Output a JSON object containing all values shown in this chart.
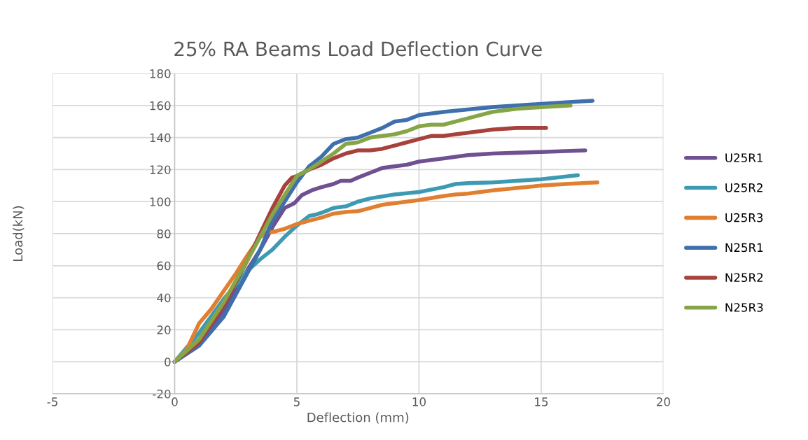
{
  "chart_data": {
    "type": "line",
    "title": "25% RA Beams Load Deflection Curve",
    "xlabel": "Deflection (mm)",
    "ylabel": "Load(kN)",
    "xlim": [
      -5,
      20
    ],
    "xticks": [
      -5,
      0,
      5,
      10,
      15,
      20
    ],
    "ylim": [
      -20,
      180
    ],
    "yticks": [
      -20,
      0,
      20,
      40,
      60,
      80,
      100,
      120,
      140,
      160,
      180
    ],
    "grid": true,
    "legend": "right",
    "marker": "none",
    "line_style": "solid",
    "series": [
      {
        "name": "U25R1",
        "color": "#6f5090",
        "x": [
          0,
          1,
          2,
          3,
          3.5,
          4,
          4.5,
          4.9,
          5.2,
          5.6,
          6,
          6.5,
          6.8,
          7.2,
          7.5,
          8,
          8.5,
          9,
          9.5,
          10,
          11,
          12,
          13,
          14,
          15,
          16.8
        ],
        "values": [
          0,
          11,
          32,
          58,
          70,
          84,
          96,
          99,
          104,
          107,
          109,
          111,
          113,
          113,
          115,
          118,
          121,
          122,
          123,
          125,
          127,
          129,
          130,
          130.5,
          131,
          132
        ]
      },
      {
        "name": "U25R2",
        "color": "#3d9ab3",
        "x": [
          0,
          1,
          2,
          3,
          3.5,
          4,
          4.5,
          5,
          5.5,
          5.8,
          6,
          6.5,
          7,
          7.5,
          8,
          9,
          10,
          11,
          11.5,
          12,
          13,
          14,
          15,
          16.5
        ],
        "values": [
          0,
          18,
          39,
          57,
          64,
          70,
          78,
          85,
          91,
          92,
          93,
          96,
          97,
          100,
          102,
          104.5,
          106,
          109,
          111,
          111.5,
          112,
          113,
          114,
          116.5
        ]
      },
      {
        "name": "U25R3",
        "color": "#e07f2f",
        "x": [
          0,
          0.5,
          1,
          1.5,
          2,
          2.5,
          3,
          3.5,
          3.8,
          4,
          4.5,
          5,
          5.5,
          6,
          6.5,
          7,
          7.5,
          8,
          8.5,
          9,
          10,
          11,
          11.5,
          12,
          13,
          14,
          15,
          16,
          17.3
        ],
        "values": [
          0,
          8,
          24,
          33,
          44,
          55,
          67,
          78,
          81,
          81,
          83,
          86,
          88,
          90,
          92.5,
          93.5,
          94,
          96,
          98,
          99,
          101,
          103.5,
          104.5,
          105,
          107,
          108.5,
          110,
          111,
          112
        ]
      },
      {
        "name": "N25R1",
        "color": "#3f6fad",
        "x": [
          0,
          1,
          2,
          3,
          3.5,
          4,
          4.5,
          5,
          5.5,
          6,
          6.5,
          7,
          7.5,
          8,
          8.5,
          9,
          9.5,
          10,
          11,
          12,
          13,
          14,
          15,
          16,
          17.1
        ],
        "values": [
          0,
          10,
          28,
          56,
          70,
          88,
          100,
          112,
          122,
          128,
          136,
          139,
          140,
          143,
          146,
          150,
          151,
          154,
          156,
          157.5,
          159,
          160,
          161,
          162,
          163
        ]
      },
      {
        "name": "N25R2",
        "color": "#a8413c",
        "x": [
          0,
          1,
          2,
          3,
          3.5,
          4,
          4.5,
          4.8,
          5,
          5.5,
          6,
          6.5,
          7,
          7.5,
          8,
          8.5,
          9,
          9.5,
          10,
          10.5,
          11,
          12,
          13,
          14,
          15.2
        ],
        "values": [
          0,
          12,
          35,
          64,
          80,
          96,
          110,
          115,
          116,
          120,
          123,
          127,
          130,
          132,
          132,
          133,
          135,
          137,
          139,
          141,
          141,
          143,
          145,
          146,
          146
        ]
      },
      {
        "name": "N25R3",
        "color": "#86a547",
        "x": [
          0,
          1,
          2,
          3,
          3.5,
          4,
          4.5,
          5,
          5.5,
          6,
          6.5,
          7,
          7.5,
          8,
          8.5,
          9,
          9.5,
          10,
          10.5,
          11,
          12,
          13,
          14,
          15,
          16.2
        ],
        "values": [
          0,
          14,
          37,
          64,
          78,
          92,
          104,
          116,
          120,
          125,
          130,
          136,
          137,
          140,
          141,
          142,
          144,
          147,
          148,
          148,
          152,
          156,
          158,
          159,
          160
        ]
      }
    ]
  }
}
